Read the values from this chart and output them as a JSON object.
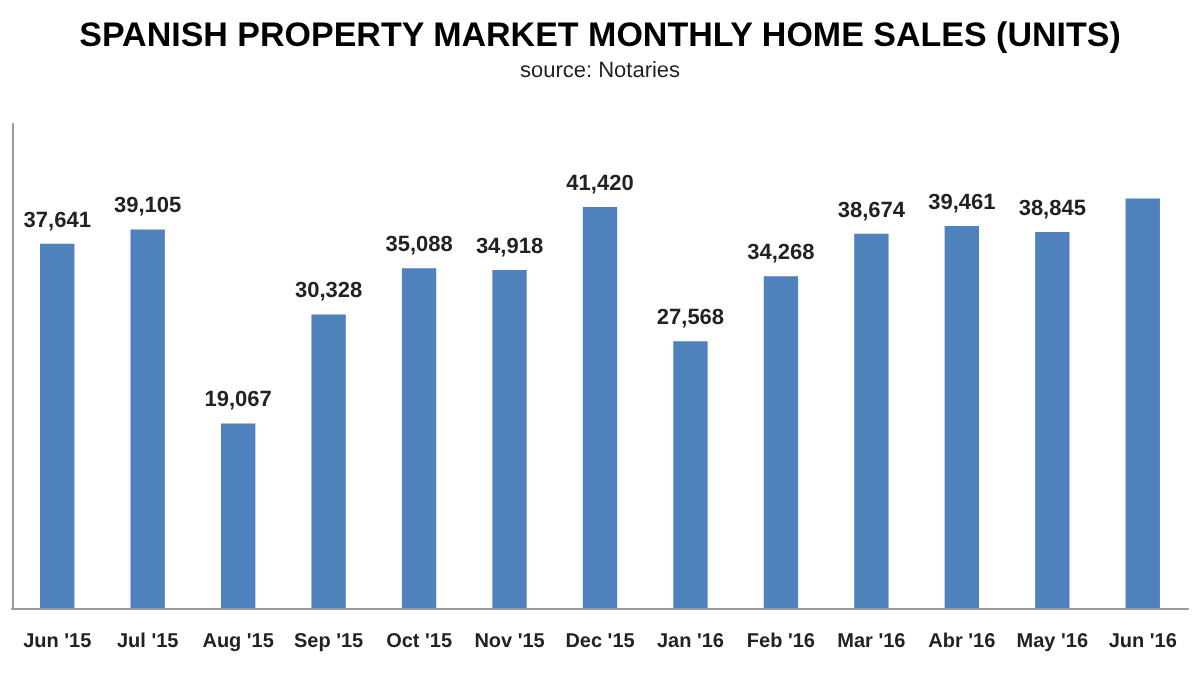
{
  "chart_data": {
    "type": "bar",
    "title": "SPANISH PROPERTY MARKET MONTHLY HOME SALES (UNITS)",
    "subtitle": "source: Notaries",
    "categories": [
      "Jun '15",
      "Jul '15",
      "Aug '15",
      "Sep '15",
      "Oct '15",
      "Nov '15",
      "Dec '15",
      "Jan '16",
      "Feb '16",
      "Mar '16",
      "Abr '16",
      "May '16",
      "Jun '16"
    ],
    "values": [
      37641,
      39105,
      19067,
      30328,
      35088,
      34918,
      41420,
      27568,
      34268,
      38674,
      39461,
      38845,
      42300
    ],
    "value_labels": [
      "37,641",
      "39,105",
      "19,067",
      "30,328",
      "35,088",
      "34,918",
      "41,420",
      "27,568",
      "34,268",
      "38,674",
      "39,461",
      "38,845",
      null
    ],
    "color": "#4f81bd",
    "grid": false
  }
}
